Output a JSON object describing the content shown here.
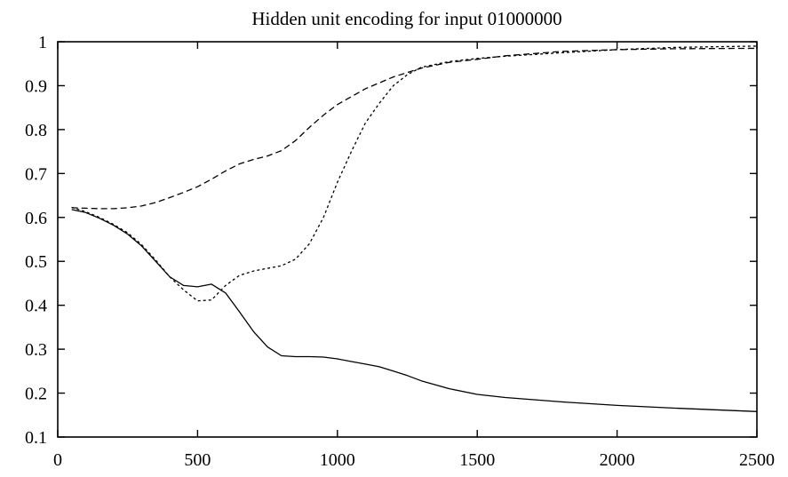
{
  "chart_data": {
    "type": "line",
    "title": "Hidden unit encoding for input 01000000",
    "xlabel": "",
    "ylabel": "",
    "xlim": [
      0,
      2500
    ],
    "ylim": [
      0.1,
      1
    ],
    "xticks": [
      0,
      500,
      1000,
      1500,
      2000,
      2500
    ],
    "yticks": [
      0.1,
      0.2,
      0.3,
      0.4,
      0.5,
      0.6,
      0.7,
      0.8,
      0.9,
      1
    ],
    "xtick_labels": [
      "0",
      "500",
      "1000",
      "1500",
      "2000",
      "2500"
    ],
    "ytick_labels": [
      "0.1",
      "0.2",
      "0.3",
      "0.4",
      "0.5",
      "0.6",
      "0.7",
      "0.8",
      "0.9",
      "1"
    ],
    "grid": false,
    "series": [
      {
        "style": "solid",
        "x": [
          50,
          100,
          150,
          200,
          250,
          300,
          350,
          400,
          450,
          500,
          550,
          600,
          650,
          700,
          750,
          800,
          850,
          900,
          950,
          1000,
          1050,
          1100,
          1150,
          1200,
          1250,
          1300,
          1400,
          1500,
          1600,
          1800,
          2000,
          2200,
          2500
        ],
        "y": [
          0.618,
          0.611,
          0.598,
          0.582,
          0.562,
          0.535,
          0.5,
          0.465,
          0.445,
          0.442,
          0.448,
          0.428,
          0.385,
          0.34,
          0.305,
          0.285,
          0.283,
          0.283,
          0.282,
          0.278,
          0.272,
          0.266,
          0.26,
          0.25,
          0.24,
          0.228,
          0.21,
          0.197,
          0.19,
          0.18,
          0.172,
          0.166,
          0.158
        ]
      },
      {
        "style": "dashed",
        "x": [
          50,
          100,
          150,
          200,
          250,
          300,
          350,
          400,
          450,
          500,
          550,
          600,
          650,
          700,
          750,
          800,
          850,
          900,
          950,
          1000,
          1100,
          1200,
          1300,
          1400,
          1500,
          1600,
          1800,
          2000,
          2200,
          2500
        ],
        "y": [
          0.622,
          0.621,
          0.62,
          0.62,
          0.622,
          0.626,
          0.634,
          0.645,
          0.657,
          0.67,
          0.687,
          0.706,
          0.722,
          0.732,
          0.74,
          0.752,
          0.775,
          0.805,
          0.833,
          0.857,
          0.893,
          0.92,
          0.94,
          0.953,
          0.96,
          0.968,
          0.978,
          0.982,
          0.984,
          0.985
        ]
      },
      {
        "style": "dotted",
        "x": [
          50,
          100,
          150,
          200,
          250,
          300,
          350,
          400,
          450,
          500,
          550,
          600,
          650,
          700,
          750,
          800,
          850,
          900,
          950,
          1000,
          1050,
          1100,
          1150,
          1200,
          1250,
          1300,
          1400,
          1500,
          1600,
          1800,
          2000,
          2200,
          2500
        ],
        "y": [
          0.623,
          0.613,
          0.6,
          0.584,
          0.565,
          0.538,
          0.503,
          0.465,
          0.435,
          0.41,
          0.412,
          0.445,
          0.468,
          0.478,
          0.484,
          0.49,
          0.505,
          0.54,
          0.6,
          0.68,
          0.75,
          0.815,
          0.86,
          0.9,
          0.925,
          0.942,
          0.955,
          0.962,
          0.967,
          0.975,
          0.982,
          0.987,
          0.99
        ]
      }
    ]
  }
}
